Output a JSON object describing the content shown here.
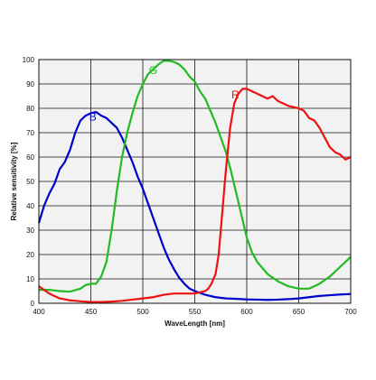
{
  "chart_data": {
    "type": "line",
    "xlabel": "WaveLength [nm]",
    "ylabel": "Relative sensitivity [%]",
    "xlim": [
      400,
      700
    ],
    "ylim": [
      0,
      100
    ],
    "xticks": [
      400,
      450,
      500,
      550,
      600,
      650,
      700
    ],
    "yticks": [
      0,
      10,
      20,
      30,
      40,
      50,
      60,
      70,
      80,
      90,
      100
    ],
    "grid": true,
    "legend": "inline labels near curves",
    "series": [
      {
        "name": "B",
        "color": "#0000cc",
        "label_at": [
          452,
          75
        ],
        "x": [
          400,
          405,
          410,
          415,
          420,
          425,
          430,
          435,
          440,
          445,
          450,
          455,
          460,
          465,
          470,
          475,
          480,
          485,
          490,
          495,
          500,
          505,
          510,
          515,
          520,
          525,
          530,
          535,
          540,
          545,
          550,
          560,
          570,
          580,
          590,
          600,
          610,
          620,
          630,
          640,
          650,
          660,
          670,
          680,
          690,
          700
        ],
        "y": [
          33,
          40,
          45,
          49,
          55,
          58,
          63,
          70,
          75,
          77,
          78,
          78.5,
          77,
          76,
          74,
          72,
          68,
          63,
          58,
          52,
          47,
          41,
          35,
          29,
          23,
          18,
          14,
          10.5,
          8,
          6,
          5,
          3.5,
          2.5,
          2,
          1.8,
          1.6,
          1.5,
          1.4,
          1.5,
          1.7,
          2,
          2.5,
          3,
          3.3,
          3.6,
          3.8
        ]
      },
      {
        "name": "G",
        "color": "#22bb22",
        "label_at": [
          510,
          94
        ],
        "x": [
          400,
          410,
          420,
          430,
          440,
          445,
          450,
          455,
          460,
          465,
          470,
          475,
          480,
          485,
          490,
          495,
          500,
          505,
          510,
          515,
          520,
          525,
          530,
          535,
          540,
          545,
          550,
          555,
          560,
          565,
          570,
          575,
          580,
          585,
          590,
          595,
          600,
          605,
          610,
          620,
          630,
          640,
          650,
          660,
          670,
          680,
          690,
          700
        ],
        "y": [
          5.5,
          5.5,
          5,
          4.8,
          6,
          7.5,
          8,
          8,
          11,
          17,
          30,
          46,
          60,
          70,
          78,
          85,
          90,
          94,
          96,
          98,
          99.5,
          99.5,
          99,
          98,
          96,
          93,
          91,
          87,
          84,
          79,
          74,
          68,
          62,
          54,
          45,
          36,
          27,
          21,
          17,
          12,
          9,
          7,
          6,
          6,
          8,
          11,
          15,
          19
        ]
      },
      {
        "name": "R",
        "color": "#ee1111",
        "label_at": [
          589,
          84
        ],
        "x": [
          400,
          410,
          420,
          430,
          440,
          450,
          460,
          470,
          480,
          490,
          500,
          510,
          520,
          530,
          540,
          550,
          555,
          560,
          563,
          566,
          570,
          573,
          576,
          580,
          584,
          588,
          592,
          596,
          600,
          605,
          610,
          615,
          620,
          625,
          630,
          640,
          650,
          655,
          660,
          665,
          670,
          675,
          680,
          685,
          690,
          695,
          700
        ],
        "y": [
          7,
          4,
          2,
          1.2,
          0.8,
          0.5,
          0.5,
          0.7,
          1,
          1.5,
          2,
          2.5,
          3.5,
          4,
          4,
          4,
          4.5,
          5,
          6,
          8,
          12,
          20,
          35,
          55,
          72,
          82,
          86,
          88,
          88,
          87,
          86,
          85,
          84,
          85,
          83,
          81,
          80,
          79,
          76,
          75,
          72,
          68,
          64,
          62,
          61,
          59,
          60
        ]
      }
    ]
  }
}
